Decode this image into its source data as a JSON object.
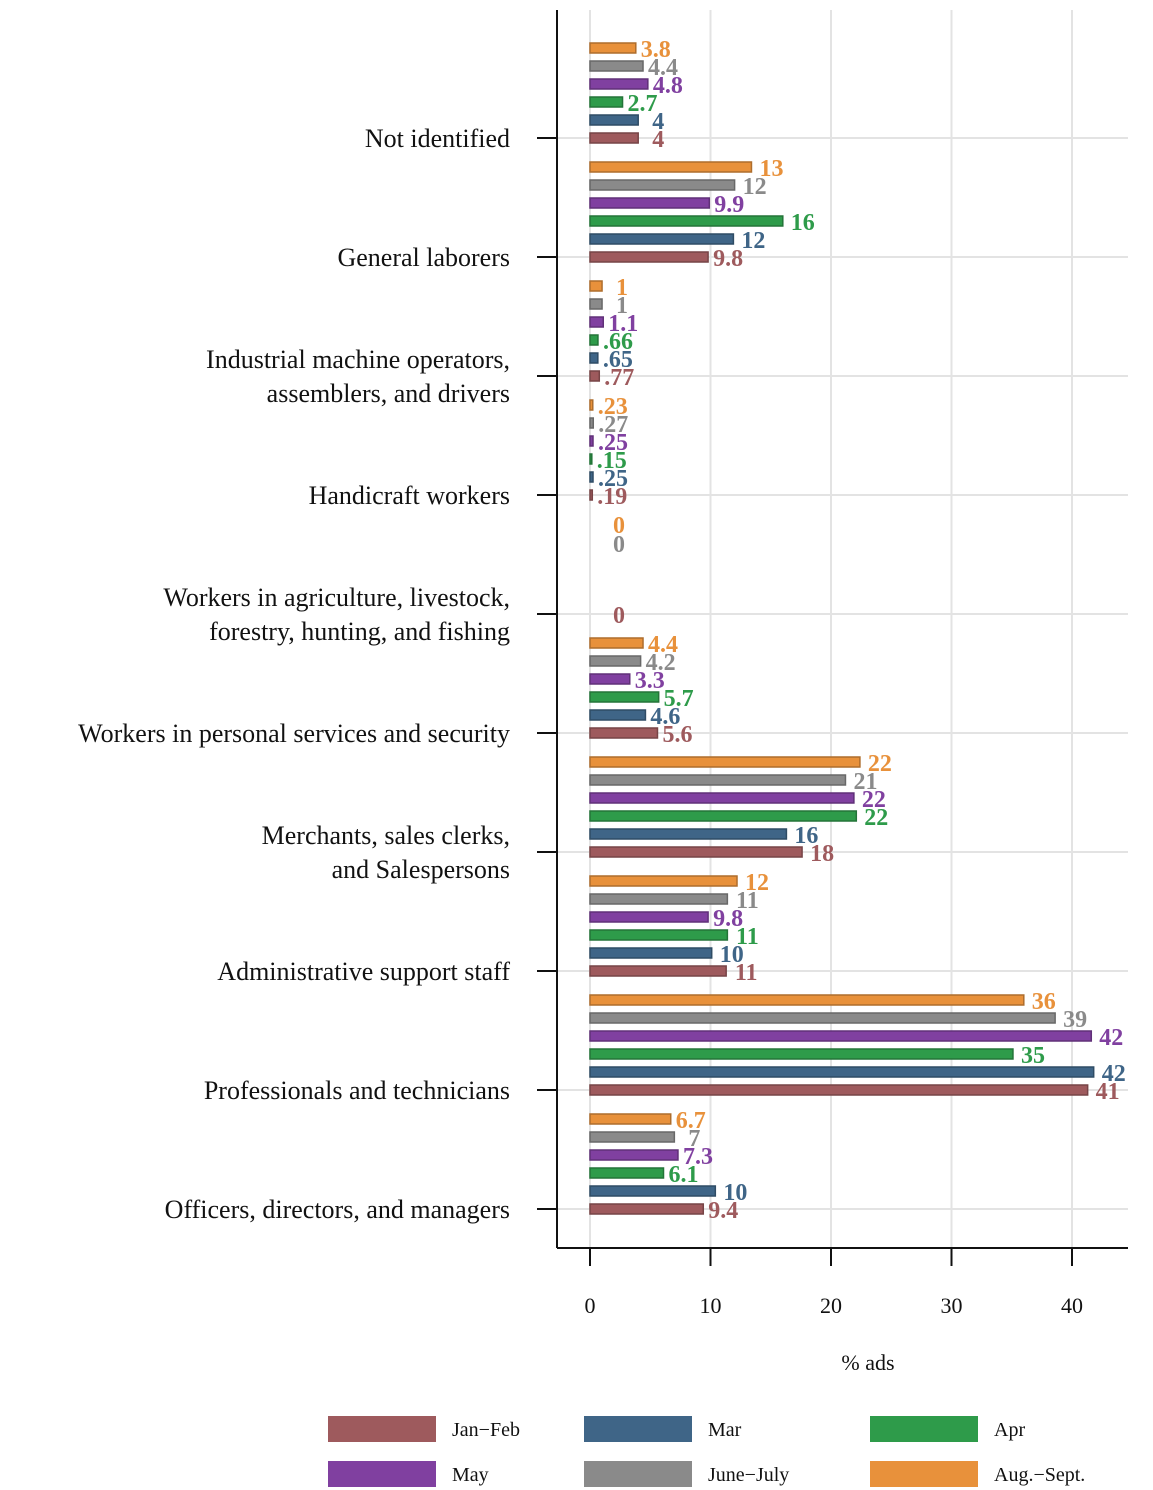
{
  "chart_data": {
    "type": "bar",
    "orientation": "horizontal",
    "xlabel": "% ads",
    "xlim": [
      0,
      45
    ],
    "xticks": [
      0,
      10,
      20,
      30,
      40
    ],
    "grid": true,
    "legend_position": "bottom",
    "categories": [
      "Not identified",
      "General laborers",
      "Industrial machine operators, assemblers, and drivers",
      "Handicraft workers",
      "Workers in agriculture, livestock, forestry, hunting, and fishing",
      "Workers in personal services and security",
      "Merchants, sales clerks, and Salespersons",
      "Administrative support staff",
      "Professionals and technicians",
      "Officers, directors, and managers"
    ],
    "category_lines": [
      [
        "Not identified"
      ],
      [
        "General laborers"
      ],
      [
        "Industrial machine operators,",
        "assemblers, and drivers"
      ],
      [
        "Handicraft workers"
      ],
      [
        "Workers in agriculture, livestock,",
        "forestry, hunting, and fishing"
      ],
      [
        "Workers in personal services and security"
      ],
      [
        "Merchants, sales clerks,",
        "and Salespersons"
      ],
      [
        "Administrative support staff"
      ],
      [
        "Professionals and technicians"
      ],
      [
        "Officers, directors, and managers"
      ]
    ],
    "series": [
      {
        "name": "Jan−Feb",
        "color": "#9e5a5d",
        "values": [
          4,
          9.8,
          0.77,
          0.19,
          0,
          5.6,
          17.6,
          11.3,
          41.3,
          9.4
        ],
        "labels": [
          "4",
          "9.8",
          ".77",
          ".19",
          "0",
          "5.6",
          "18",
          "11",
          "41",
          "9.4"
        ]
      },
      {
        "name": "Mar",
        "color": "#3f6587",
        "values": [
          4,
          11.9,
          0.65,
          0.25,
          null,
          4.6,
          16.3,
          10.1,
          41.8,
          10.4
        ],
        "labels": [
          "4",
          "12",
          ".65",
          ".25",
          "",
          "4.6",
          "16",
          "10",
          "42",
          "10"
        ]
      },
      {
        "name": "Apr",
        "color": "#2e9b4a",
        "values": [
          2.7,
          16.0,
          0.66,
          0.15,
          null,
          5.7,
          22.1,
          11.4,
          35.1,
          6.1
        ],
        "labels": [
          "2.7",
          "16",
          ".66",
          ".15",
          "",
          "5.7",
          "22",
          "11",
          "35",
          "6.1"
        ]
      },
      {
        "name": "May",
        "color": "#8040a0",
        "values": [
          4.8,
          9.9,
          1.1,
          0.25,
          null,
          3.3,
          21.9,
          9.8,
          41.6,
          7.3
        ],
        "labels": [
          "4.8",
          "9.9",
          "1.1",
          ".25",
          "",
          "3.3",
          "22",
          "9.8",
          "42",
          "7.3"
        ]
      },
      {
        "name": "June−July",
        "color": "#8a8a8a",
        "values": [
          4.4,
          12.0,
          1.0,
          0.27,
          0,
          4.2,
          21.2,
          11.4,
          38.6,
          7.0
        ],
        "labels": [
          "4.4",
          "12",
          "1",
          ".27",
          "0",
          "4.2",
          "21",
          "11",
          "39",
          "7"
        ]
      },
      {
        "name": "Aug.−Sept.",
        "color": "#e8913b",
        "values": [
          3.8,
          13.4,
          1.0,
          0.23,
          0,
          4.4,
          22.4,
          12.2,
          36.0,
          6.7
        ],
        "labels": [
          "3.8",
          "13",
          "1",
          ".23",
          "0",
          "4.4",
          "22",
          "12",
          "36",
          "6.7"
        ]
      }
    ]
  }
}
